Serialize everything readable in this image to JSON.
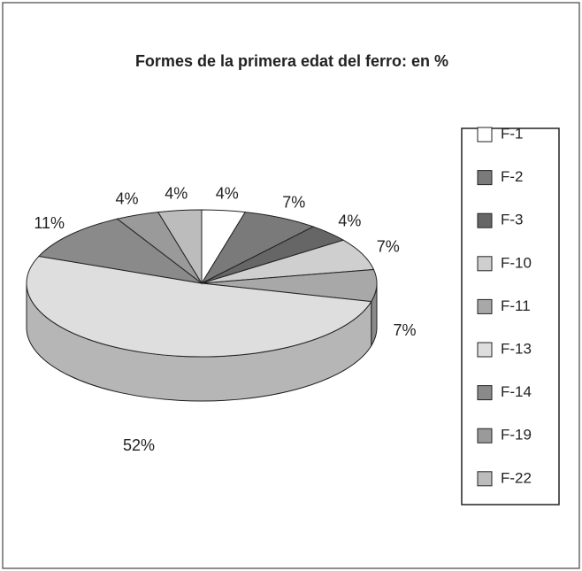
{
  "chart_data": {
    "type": "pie",
    "title": "Formes de la primera edat del ferro: en %",
    "categories": [
      "F-1",
      "F-2",
      "F-3",
      "F-10",
      "F-11",
      "F-13",
      "F-14",
      "F-19",
      "F-22"
    ],
    "values": [
      4,
      7,
      4,
      7,
      7,
      52,
      11,
      4,
      4
    ],
    "value_labels": [
      "4%",
      "7%",
      "4%",
      "7%",
      "7%",
      "52%",
      "11%",
      "4%",
      "4%"
    ],
    "colors": [
      "#ffffff",
      "#7a7a7a",
      "#666666",
      "#cfcfcf",
      "#a8a8a8",
      "#dedede",
      "#8a8a8a",
      "#9a9a9a",
      "#bcbcbc"
    ]
  }
}
